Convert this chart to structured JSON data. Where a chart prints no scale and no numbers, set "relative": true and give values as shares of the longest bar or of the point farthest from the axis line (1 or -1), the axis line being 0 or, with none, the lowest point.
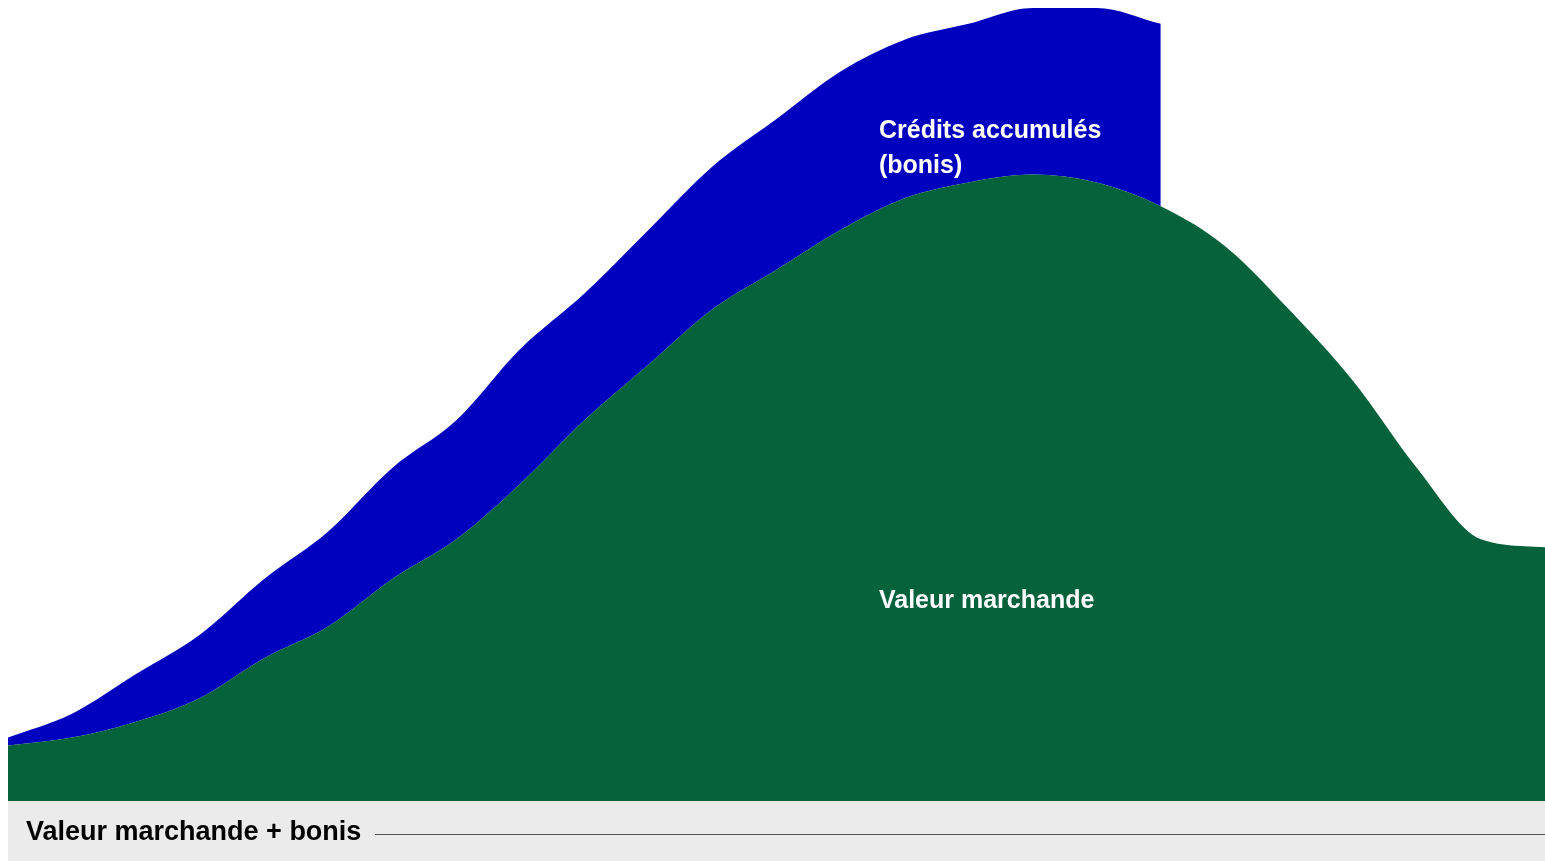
{
  "chart_data": {
    "type": "area",
    "relative": true,
    "stacked": true,
    "xlabel": "Valeur marchande + bonis",
    "categories": [
      null,
      null,
      null,
      null,
      null,
      null,
      null,
      null,
      null,
      null,
      null,
      null,
      null,
      null,
      null,
      null,
      null,
      null,
      null,
      null,
      null,
      null,
      null,
      null,
      null
    ],
    "series": [
      {
        "name": "Valeur marchande",
        "color": "#06623b",
        "values": [
          0.07,
          0.08,
          0.1,
          0.13,
          0.18,
          0.22,
          0.28,
          0.33,
          0.4,
          0.48,
          0.55,
          0.62,
          0.67,
          0.72,
          0.76,
          0.78,
          0.79,
          0.78,
          0.75,
          0.7,
          0.62,
          0.53,
          0.42,
          0.33,
          0.32
        ]
      },
      {
        "name": "Crédits accumulés (bonis)",
        "color": "#0000bf",
        "values": [
          0.01,
          0.03,
          0.06,
          0.08,
          0.1,
          0.12,
          0.14,
          0.15,
          0.17,
          0.16,
          0.17,
          0.18,
          0.19,
          0.2,
          0.2,
          0.2,
          0.21,
          0.22,
          0.23,
          null,
          null,
          null,
          null,
          null,
          null
        ]
      }
    ]
  }
}
